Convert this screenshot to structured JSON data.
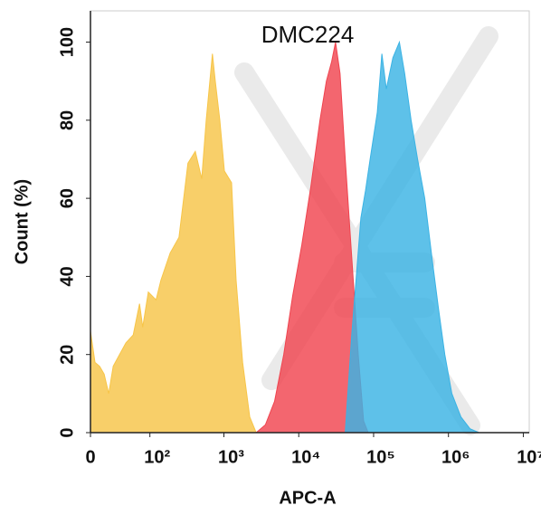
{
  "chart_data": {
    "type": "area",
    "title": "DMC224",
    "xlabel": "APC-A",
    "ylabel": "Count  (%)",
    "xscale": "asinh",
    "xlim": [
      0,
      12000000
    ],
    "xticks": [
      0,
      {
        "value": 100,
        "label": "10²"
      },
      {
        "value": 1000,
        "label": "10³"
      },
      {
        "value": 10000,
        "label": "10⁴"
      },
      {
        "value": 100000,
        "label": "10⁵"
      },
      {
        "value": 1000000,
        "label": "10⁶"
      },
      {
        "value": 10000000,
        "label": "10⁷"
      }
    ],
    "ylim": [
      0,
      108
    ],
    "yticks": [
      0,
      20,
      40,
      60,
      80,
      100
    ],
    "series": [
      {
        "color": "#f7c548",
        "x": [
          0,
          4.6,
          9.4,
          14.3,
          19.5,
          25,
          33.6,
          43.6,
          57,
          71,
          79,
          95,
          122,
          142,
          190,
          250,
          330,
          414,
          505,
          580,
          702,
          767,
          882,
          1015,
          1266,
          1456,
          1778,
          2215,
          2700
        ],
        "values": [
          26,
          18,
          17,
          15,
          10,
          17,
          20,
          23,
          25,
          33,
          27,
          36,
          34,
          39,
          46,
          50,
          69,
          72,
          65,
          80,
          97,
          90,
          80,
          67,
          64,
          39,
          18,
          4,
          0
        ]
      },
      {
        "color": "#f0444f",
        "x": [
          2700,
          3580,
          4750,
          6300,
          8290,
          10970,
          14500,
          19200,
          23400,
          27500,
          31000,
          35600,
          41800,
          51000,
          62300,
          73500,
          84600
        ],
        "values": [
          0,
          2,
          8,
          20,
          35,
          48,
          63,
          80,
          90,
          95,
          100,
          92,
          70,
          45,
          20,
          3,
          0
        ]
      },
      {
        "color": "#3bb3e4",
        "x": [
          41800,
          51000,
          58700,
          67600,
          78000,
          89800,
          112000,
          129000,
          148000,
          181000,
          221000,
          260000,
          317000,
          387000,
          482000,
          600000,
          733000,
          894000,
          1110000,
          1470000,
          1940000,
          2560000
        ],
        "values": [
          0,
          25,
          40,
          55,
          62,
          70,
          82,
          97,
          88,
          96,
          100,
          92,
          80,
          70,
          60,
          45,
          32,
          20,
          10,
          4,
          1,
          0
        ]
      }
    ]
  }
}
